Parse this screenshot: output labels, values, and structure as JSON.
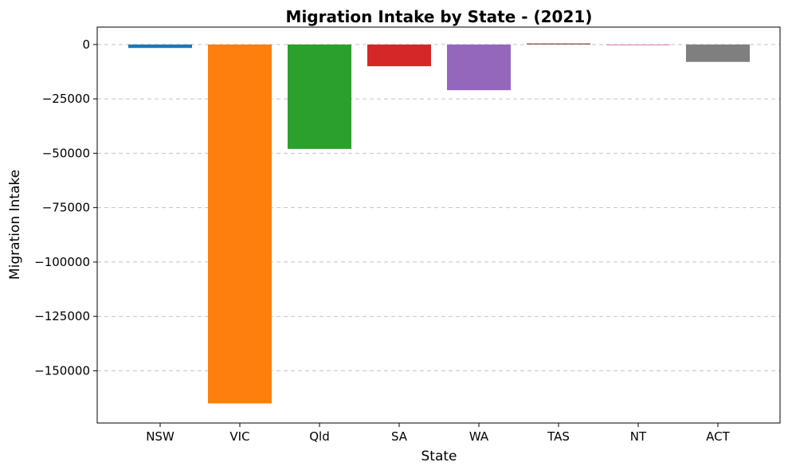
{
  "chart_data": {
    "type": "bar",
    "title": "Migration Intake by State - (2021)",
    "xlabel": "State",
    "ylabel": "Migration Intake",
    "categories": [
      "NSW",
      "VIC",
      "Qld",
      "SA",
      "WA",
      "TAS",
      "NT",
      "ACT"
    ],
    "values": [
      -1600,
      -165000,
      -48000,
      -10000,
      -21000,
      500,
      -300,
      -8000
    ],
    "colors": [
      "#1f77b4",
      "#ff7f0e",
      "#2ca02c",
      "#d62728",
      "#9467bd",
      "#8c564b",
      "#e377c2",
      "#7f7f7f"
    ],
    "ylim": [
      -174000,
      8000
    ],
    "yticks": [
      0,
      -25000,
      -50000,
      -75000,
      -100000,
      -125000,
      -150000
    ],
    "ytick_labels": [
      "0",
      "−25000",
      "−50000",
      "−75000",
      "−100000",
      "−125000",
      "−150000"
    ],
    "grid": "y-dashed"
  }
}
